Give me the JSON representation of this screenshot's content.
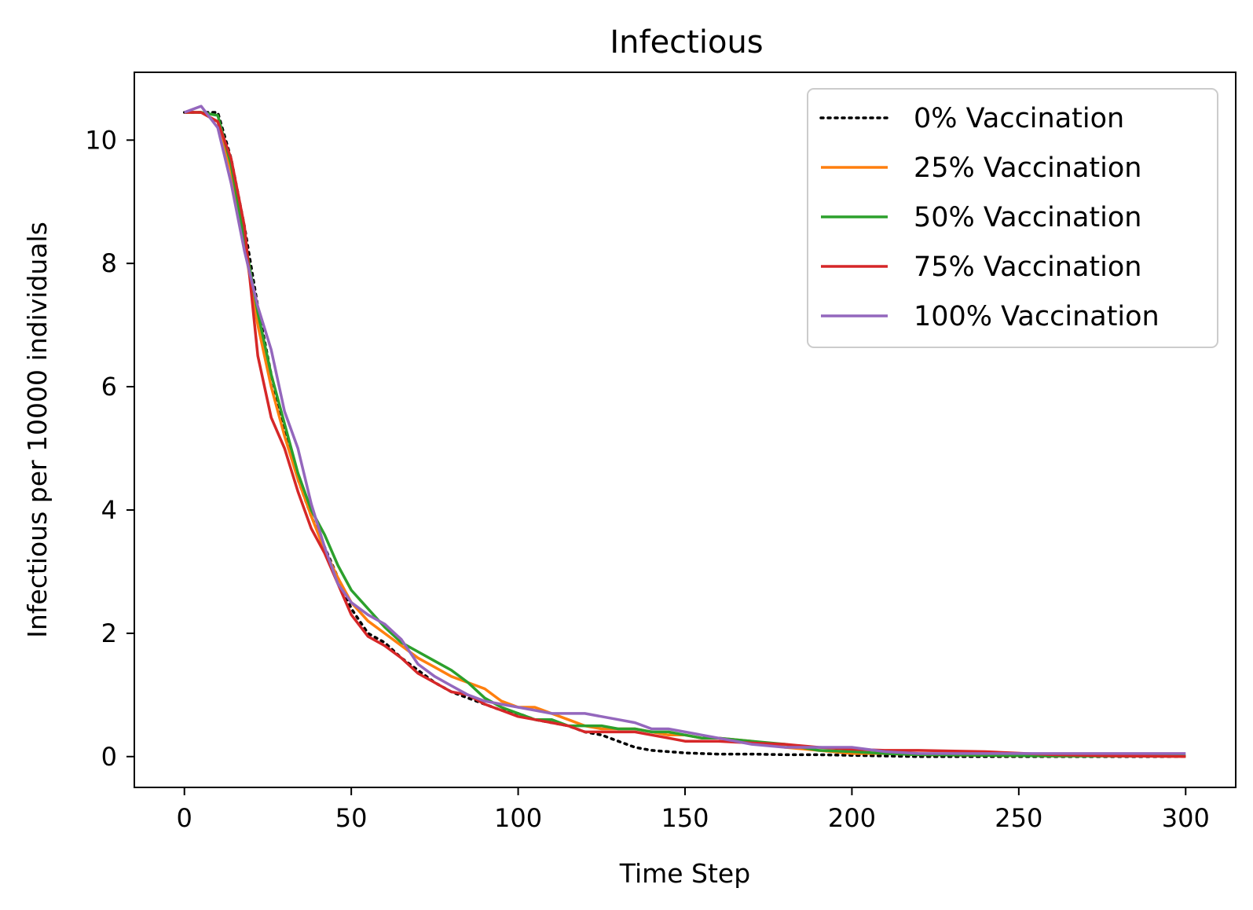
{
  "chart_data": {
    "type": "line",
    "title": "Infectious",
    "xlabel": "Time Step",
    "ylabel": "Infectious per 10000 individuals",
    "xlim": [
      -15,
      315
    ],
    "ylim": [
      -0.5,
      11.1
    ],
    "xticks": [
      0,
      50,
      100,
      150,
      200,
      250,
      300
    ],
    "yticks": [
      0,
      2,
      4,
      6,
      8,
      10
    ],
    "grid": false,
    "legend_position": "top-right",
    "series": [
      {
        "name": "0% Vaccination",
        "color": "#000000",
        "style": "dotted",
        "x": [
          0,
          5,
          10,
          14,
          18,
          22,
          26,
          30,
          34,
          38,
          42,
          46,
          50,
          55,
          60,
          65,
          70,
          75,
          80,
          85,
          90,
          95,
          100,
          105,
          110,
          115,
          120,
          125,
          130,
          135,
          140,
          145,
          150,
          155,
          160,
          170,
          180,
          190,
          200,
          210,
          220,
          240,
          260,
          280,
          300
        ],
        "y": [
          10.45,
          10.45,
          10.45,
          9.7,
          8.6,
          7.3,
          6.2,
          5.3,
          4.5,
          3.9,
          3.4,
          2.9,
          2.4,
          2.0,
          1.85,
          1.6,
          1.4,
          1.2,
          1.05,
          0.95,
          0.85,
          0.75,
          0.7,
          0.6,
          0.55,
          0.5,
          0.4,
          0.35,
          0.25,
          0.15,
          0.1,
          0.08,
          0.06,
          0.05,
          0.04,
          0.04,
          0.03,
          0.03,
          0.02,
          0.01,
          0.0,
          0.0,
          0.0,
          0.0,
          0.0
        ]
      },
      {
        "name": "25% Vaccination",
        "color": "#ff7f0e",
        "style": "solid",
        "x": [
          0,
          5,
          10,
          14,
          18,
          22,
          26,
          30,
          34,
          38,
          42,
          46,
          50,
          55,
          60,
          65,
          70,
          75,
          80,
          85,
          90,
          95,
          100,
          105,
          110,
          115,
          120,
          125,
          130,
          135,
          140,
          145,
          150,
          155,
          160,
          170,
          180,
          190,
          200,
          210,
          220,
          240,
          260,
          280,
          300
        ],
        "y": [
          10.45,
          10.45,
          10.3,
          9.5,
          8.3,
          7.0,
          6.0,
          5.2,
          4.5,
          3.9,
          3.35,
          2.9,
          2.5,
          2.2,
          2.0,
          1.8,
          1.6,
          1.45,
          1.3,
          1.2,
          1.1,
          0.9,
          0.8,
          0.8,
          0.7,
          0.6,
          0.5,
          0.45,
          0.45,
          0.45,
          0.4,
          0.35,
          0.35,
          0.3,
          0.3,
          0.25,
          0.15,
          0.1,
          0.05,
          0.05,
          0.03,
          0.02,
          0.01,
          0.01,
          0.01
        ]
      },
      {
        "name": "50% Vaccination",
        "color": "#2ca02c",
        "style": "solid",
        "x": [
          0,
          5,
          10,
          14,
          18,
          22,
          26,
          30,
          34,
          38,
          42,
          46,
          50,
          55,
          60,
          65,
          70,
          75,
          80,
          85,
          90,
          95,
          100,
          105,
          110,
          115,
          120,
          125,
          130,
          135,
          140,
          145,
          150,
          155,
          160,
          170,
          180,
          190,
          200,
          210,
          220,
          240,
          260,
          280,
          300
        ],
        "y": [
          10.45,
          10.45,
          10.4,
          9.6,
          8.4,
          7.2,
          6.2,
          5.4,
          4.6,
          4.0,
          3.6,
          3.1,
          2.7,
          2.4,
          2.1,
          1.85,
          1.7,
          1.55,
          1.4,
          1.2,
          0.95,
          0.8,
          0.7,
          0.6,
          0.6,
          0.5,
          0.5,
          0.5,
          0.45,
          0.45,
          0.4,
          0.4,
          0.35,
          0.3,
          0.3,
          0.25,
          0.2,
          0.1,
          0.08,
          0.05,
          0.03,
          0.02,
          0.01,
          0.01,
          0.01
        ]
      },
      {
        "name": "75% Vaccination",
        "color": "#d62728",
        "style": "solid",
        "x": [
          0,
          5,
          10,
          14,
          18,
          22,
          26,
          30,
          34,
          38,
          42,
          46,
          50,
          55,
          60,
          65,
          70,
          75,
          80,
          85,
          90,
          95,
          100,
          105,
          110,
          115,
          120,
          125,
          130,
          135,
          140,
          145,
          150,
          155,
          160,
          170,
          180,
          190,
          200,
          210,
          220,
          240,
          260,
          280,
          300
        ],
        "y": [
          10.45,
          10.45,
          10.3,
          9.7,
          8.6,
          6.5,
          5.5,
          5.0,
          4.3,
          3.7,
          3.3,
          2.8,
          2.3,
          1.95,
          1.8,
          1.6,
          1.35,
          1.2,
          1.05,
          1.0,
          0.85,
          0.75,
          0.65,
          0.6,
          0.55,
          0.5,
          0.4,
          0.4,
          0.4,
          0.4,
          0.35,
          0.3,
          0.25,
          0.25,
          0.25,
          0.22,
          0.2,
          0.15,
          0.12,
          0.1,
          0.1,
          0.08,
          0.03,
          0.01,
          0.0
        ]
      },
      {
        "name": "100% Vaccination",
        "color": "#9467bd",
        "style": "solid",
        "x": [
          0,
          5,
          10,
          14,
          18,
          22,
          26,
          30,
          34,
          38,
          42,
          46,
          50,
          55,
          60,
          65,
          70,
          75,
          80,
          85,
          90,
          95,
          100,
          105,
          110,
          115,
          120,
          125,
          130,
          135,
          140,
          145,
          150,
          155,
          160,
          170,
          180,
          190,
          200,
          210,
          220,
          240,
          260,
          280,
          300
        ],
        "y": [
          10.45,
          10.55,
          10.2,
          9.3,
          8.2,
          7.3,
          6.6,
          5.6,
          5.0,
          4.1,
          3.4,
          2.8,
          2.5,
          2.3,
          2.15,
          1.9,
          1.5,
          1.3,
          1.15,
          1.0,
          0.9,
          0.85,
          0.8,
          0.75,
          0.7,
          0.7,
          0.7,
          0.65,
          0.6,
          0.55,
          0.45,
          0.45,
          0.4,
          0.35,
          0.3,
          0.2,
          0.15,
          0.15,
          0.15,
          0.08,
          0.05,
          0.05,
          0.05,
          0.05,
          0.05
        ]
      }
    ]
  }
}
